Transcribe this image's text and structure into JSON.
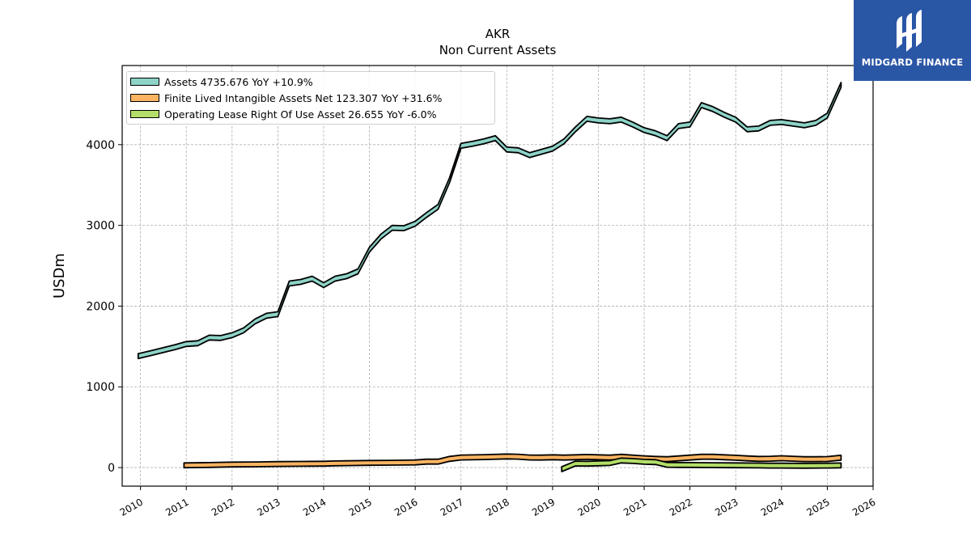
{
  "logo": {
    "text": "MIDGARD FINANCE"
  },
  "chart_data": {
    "type": "area",
    "title": "AKR",
    "subtitle": "Non Current  Assets",
    "xlabel": "",
    "ylabel": "USDm",
    "xlim": [
      2009.6,
      2026.0
    ],
    "ylim": [
      -230,
      4980
    ],
    "x_ticks": [
      "2010",
      "2011",
      "2012",
      "2013",
      "2014",
      "2015",
      "2016",
      "2017",
      "2018",
      "2019",
      "2020",
      "2021",
      "2022",
      "2023",
      "2024",
      "2025",
      "2026"
    ],
    "y_ticks": [
      "0",
      "1000",
      "2000",
      "3000",
      "4000"
    ],
    "grid": true,
    "legend_position": "top-left",
    "series": [
      {
        "name": "Assets  4735.676 YoY +10.9%",
        "color": "#8dd3c7",
        "band_width": 60,
        "points": [
          [
            2009.95,
            1380
          ],
          [
            2010.25,
            1420
          ],
          [
            2010.5,
            1455
          ],
          [
            2010.75,
            1490
          ],
          [
            2011.0,
            1530
          ],
          [
            2011.25,
            1540
          ],
          [
            2011.5,
            1610
          ],
          [
            2011.75,
            1605
          ],
          [
            2012.0,
            1640
          ],
          [
            2012.25,
            1700
          ],
          [
            2012.5,
            1810
          ],
          [
            2012.75,
            1880
          ],
          [
            2013.0,
            1900
          ],
          [
            2013.25,
            2280
          ],
          [
            2013.5,
            2300
          ],
          [
            2013.75,
            2340
          ],
          [
            2014.0,
            2260
          ],
          [
            2014.25,
            2340
          ],
          [
            2014.5,
            2370
          ],
          [
            2014.75,
            2430
          ],
          [
            2015.0,
            2700
          ],
          [
            2015.25,
            2860
          ],
          [
            2015.5,
            2970
          ],
          [
            2015.75,
            2965
          ],
          [
            2016.0,
            3020
          ],
          [
            2016.25,
            3130
          ],
          [
            2016.5,
            3230
          ],
          [
            2016.75,
            3560
          ],
          [
            2017.0,
            3985
          ],
          [
            2017.25,
            4010
          ],
          [
            2017.5,
            4040
          ],
          [
            2017.75,
            4080
          ],
          [
            2018.0,
            3940
          ],
          [
            2018.25,
            3930
          ],
          [
            2018.5,
            3870
          ],
          [
            2018.75,
            3910
          ],
          [
            2019.0,
            3950
          ],
          [
            2019.25,
            4040
          ],
          [
            2019.5,
            4190
          ],
          [
            2019.75,
            4320
          ],
          [
            2020.0,
            4300
          ],
          [
            2020.25,
            4290
          ],
          [
            2020.5,
            4310
          ],
          [
            2020.75,
            4250
          ],
          [
            2021.0,
            4180
          ],
          [
            2021.25,
            4140
          ],
          [
            2021.5,
            4080
          ],
          [
            2021.75,
            4230
          ],
          [
            2022.0,
            4250
          ],
          [
            2022.25,
            4490
          ],
          [
            2022.5,
            4440
          ],
          [
            2022.75,
            4370
          ],
          [
            2023.0,
            4310
          ],
          [
            2023.25,
            4190
          ],
          [
            2023.5,
            4200
          ],
          [
            2023.75,
            4270
          ],
          [
            2024.0,
            4280
          ],
          [
            2024.25,
            4260
          ],
          [
            2024.5,
            4240
          ],
          [
            2024.75,
            4270
          ],
          [
            2025.0,
            4360
          ],
          [
            2025.3,
            4740
          ]
        ]
      },
      {
        "name": "Finite Lived Intangible Assets Net  123.307 YoY +31.6%",
        "color": "#fdb462",
        "band_width": 60,
        "points": [
          [
            2010.95,
            28
          ],
          [
            2011.5,
            32
          ],
          [
            2012.0,
            38
          ],
          [
            2012.5,
            40
          ],
          [
            2013.0,
            44
          ],
          [
            2013.5,
            46
          ],
          [
            2014.0,
            48
          ],
          [
            2014.25,
            52
          ],
          [
            2014.5,
            54
          ],
          [
            2015.0,
            58
          ],
          [
            2015.5,
            60
          ],
          [
            2016.0,
            64
          ],
          [
            2016.25,
            74
          ],
          [
            2016.5,
            74
          ],
          [
            2016.75,
            108
          ],
          [
            2017.0,
            125
          ],
          [
            2017.5,
            130
          ],
          [
            2018.0,
            138
          ],
          [
            2018.25,
            135
          ],
          [
            2018.5,
            125
          ],
          [
            2018.75,
            124
          ],
          [
            2019.0,
            128
          ],
          [
            2019.25,
            124
          ],
          [
            2019.5,
            128
          ],
          [
            2019.75,
            132
          ],
          [
            2020.0,
            128
          ],
          [
            2020.25,
            124
          ],
          [
            2020.5,
            134
          ],
          [
            2020.75,
            124
          ],
          [
            2021.0,
            115
          ],
          [
            2021.25,
            108
          ],
          [
            2021.5,
            104
          ],
          [
            2021.75,
            114
          ],
          [
            2022.0,
            124
          ],
          [
            2022.25,
            134
          ],
          [
            2022.5,
            134
          ],
          [
            2022.75,
            128
          ],
          [
            2023.0,
            122
          ],
          [
            2023.25,
            114
          ],
          [
            2023.5,
            108
          ],
          [
            2023.75,
            110
          ],
          [
            2024.0,
            116
          ],
          [
            2024.25,
            110
          ],
          [
            2024.5,
            104
          ],
          [
            2024.75,
            104
          ],
          [
            2025.0,
            106
          ],
          [
            2025.3,
            123
          ]
        ]
      },
      {
        "name": "Operating Lease Right Of Use Asset  26.655 YoY -6.0%",
        "color": "#b3de69",
        "band_width": 60,
        "points": [
          [
            2019.2,
            -20
          ],
          [
            2019.5,
            50
          ],
          [
            2019.75,
            48
          ],
          [
            2020.0,
            52
          ],
          [
            2020.25,
            56
          ],
          [
            2020.5,
            88
          ],
          [
            2020.75,
            82
          ],
          [
            2021.0,
            72
          ],
          [
            2021.25,
            68
          ],
          [
            2021.5,
            34
          ],
          [
            2021.75,
            32
          ],
          [
            2022.0,
            32
          ],
          [
            2022.5,
            30
          ],
          [
            2023.0,
            28
          ],
          [
            2023.5,
            26
          ],
          [
            2023.75,
            24
          ],
          [
            2024.0,
            24
          ],
          [
            2024.5,
            22
          ],
          [
            2025.0,
            24
          ],
          [
            2025.3,
            27
          ]
        ]
      }
    ]
  }
}
